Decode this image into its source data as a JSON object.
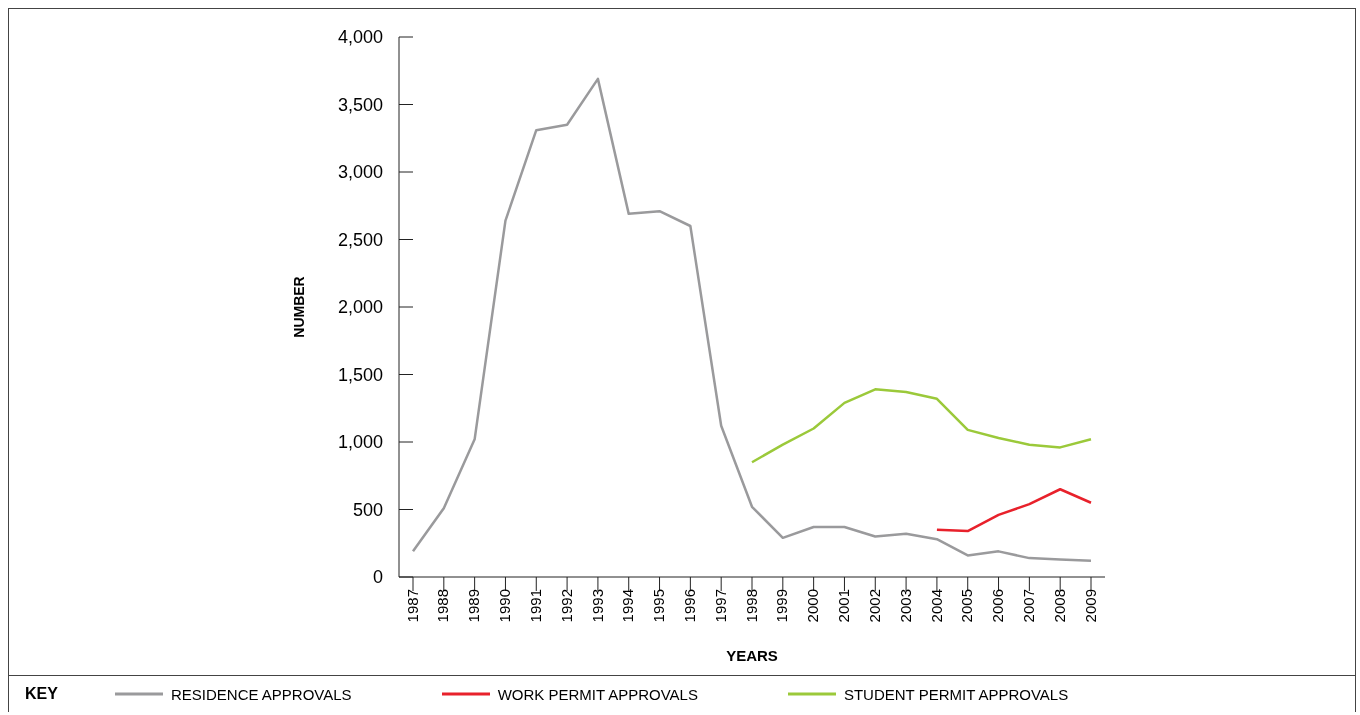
{
  "chart_data": {
    "type": "line",
    "xlabel": "YEARS",
    "ylabel": "NUMBER",
    "legend_title": "KEY",
    "legend": "bottom",
    "grid": false,
    "marker": "none",
    "line_style": "solid",
    "categories": [
      "1987",
      "1988",
      "1989",
      "1990",
      "1991",
      "1992",
      "1993",
      "1994",
      "1995",
      "1996",
      "1997",
      "1998",
      "1999",
      "2000",
      "2001",
      "2002",
      "2003",
      "2004",
      "2005",
      "2006",
      "2007",
      "2008",
      "2009"
    ],
    "ylim": [
      0,
      4000
    ],
    "yticks": [
      0,
      500,
      {
        "value": 1000,
        "label": "1,000"
      },
      {
        "value": 1500,
        "label": "1,500"
      },
      {
        "value": 2000,
        "label": "2,000"
      },
      {
        "value": 2500,
        "label": "2,500"
      },
      {
        "value": 3000,
        "label": "3,000"
      },
      {
        "value": 3500,
        "label": "3,500"
      },
      {
        "value": 4000,
        "label": "4,000"
      }
    ],
    "series": [
      {
        "name": "RESIDENCE APPROVALS",
        "color": "#9a9a9c",
        "values": [
          190,
          510,
          1020,
          2640,
          3310,
          3350,
          3690,
          2690,
          2710,
          2600,
          1120,
          520,
          290,
          370,
          370,
          300,
          320,
          280,
          160,
          190,
          140,
          130,
          120
        ]
      },
      {
        "name": "WORK PERMIT APPROVALS",
        "color": "#e8212b",
        "values": [
          null,
          null,
          null,
          null,
          null,
          null,
          null,
          null,
          null,
          null,
          null,
          null,
          null,
          null,
          null,
          null,
          null,
          350,
          340,
          460,
          540,
          650,
          550
        ]
      },
      {
        "name": "STUDENT PERMIT APPROVALS",
        "color": "#9bc93a",
        "values": [
          null,
          null,
          null,
          null,
          null,
          null,
          null,
          null,
          null,
          null,
          null,
          850,
          980,
          1100,
          1290,
          1390,
          1370,
          1320,
          1090,
          1030,
          980,
          960,
          1020
        ]
      }
    ]
  }
}
